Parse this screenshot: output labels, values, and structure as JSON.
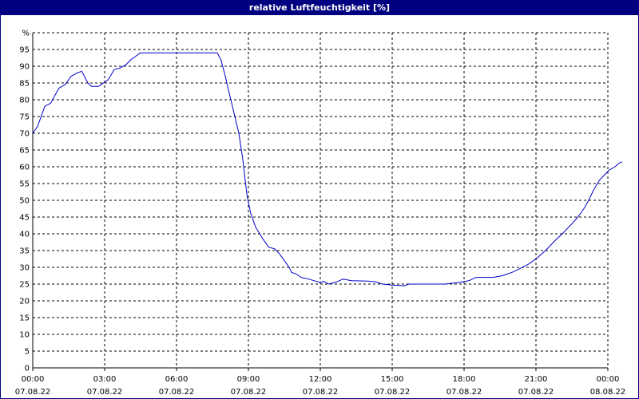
{
  "window": {
    "title": "relative Luftfeuchtigkeit [%]"
  },
  "chart_data": {
    "type": "line",
    "title": "relative Luftfeuchtigkeit [%]",
    "ylabel": "%",
    "ylim": [
      0,
      100
    ],
    "yticks": [
      0,
      5,
      10,
      15,
      20,
      25,
      30,
      35,
      40,
      45,
      50,
      55,
      60,
      65,
      70,
      75,
      80,
      85,
      90,
      95
    ],
    "xlim": [
      0,
      24
    ],
    "xticks": [
      {
        "x": 0,
        "time": "00:00",
        "date": "07.08.22"
      },
      {
        "x": 3,
        "time": "03:00",
        "date": "07.08.22"
      },
      {
        "x": 6,
        "time": "06:00",
        "date": "07.08.22"
      },
      {
        "x": 9,
        "time": "09:00",
        "date": "07.08.22"
      },
      {
        "x": 12,
        "time": "12:00",
        "date": "07.08.22"
      },
      {
        "x": 15,
        "time": "15:00",
        "date": "07.08.22"
      },
      {
        "x": 18,
        "time": "18:00",
        "date": "07.08.22"
      },
      {
        "x": 21,
        "time": "21:00",
        "date": "07.08.22"
      },
      {
        "x": 24,
        "time": "00:00",
        "date": "08.08.22"
      }
    ],
    "grid": true,
    "line_color": "#0000cc",
    "series": [
      {
        "points": [
          [
            0,
            70
          ],
          [
            0.2,
            72
          ],
          [
            0.4,
            76
          ],
          [
            0.5,
            78
          ],
          [
            0.75,
            79
          ],
          [
            0.9,
            81
          ],
          [
            1.1,
            83.5
          ],
          [
            1.35,
            84.5
          ],
          [
            1.6,
            87
          ],
          [
            1.85,
            88
          ],
          [
            2.05,
            88.5
          ],
          [
            2.3,
            85
          ],
          [
            2.45,
            84
          ],
          [
            2.75,
            84
          ],
          [
            2.95,
            85
          ],
          [
            3.15,
            86
          ],
          [
            3.4,
            89
          ],
          [
            3.65,
            89.5
          ],
          [
            3.9,
            90.5
          ],
          [
            4.1,
            92
          ],
          [
            4.3,
            93
          ],
          [
            4.5,
            94
          ],
          [
            5.5,
            94
          ],
          [
            6.5,
            94
          ],
          [
            7.2,
            94
          ],
          [
            7.7,
            94
          ],
          [
            7.85,
            92
          ],
          [
            8.0,
            88
          ],
          [
            8.2,
            82
          ],
          [
            8.4,
            76
          ],
          [
            8.6,
            70
          ],
          [
            8.75,
            63
          ],
          [
            8.85,
            57
          ],
          [
            8.95,
            51
          ],
          [
            9.1,
            46
          ],
          [
            9.3,
            42
          ],
          [
            9.6,
            38.5
          ],
          [
            9.85,
            36
          ],
          [
            10.1,
            35.5
          ],
          [
            10.3,
            34
          ],
          [
            10.5,
            32
          ],
          [
            10.7,
            30
          ],
          [
            10.8,
            28.5
          ],
          [
            11.0,
            28
          ],
          [
            11.2,
            27
          ],
          [
            11.5,
            26.5
          ],
          [
            11.75,
            26
          ],
          [
            12.0,
            25.5
          ],
          [
            12.15,
            25.8
          ],
          [
            12.35,
            25
          ],
          [
            12.7,
            25.7
          ],
          [
            12.95,
            26.5
          ],
          [
            13.3,
            26
          ],
          [
            14.0,
            25.9
          ],
          [
            14.3,
            25.7
          ],
          [
            14.6,
            25
          ],
          [
            15.0,
            24.7
          ],
          [
            15.5,
            24.5
          ],
          [
            15.7,
            25
          ],
          [
            16.5,
            25
          ],
          [
            17.2,
            25
          ],
          [
            17.8,
            25.5
          ],
          [
            18.2,
            26
          ],
          [
            18.5,
            27
          ],
          [
            19.2,
            27
          ],
          [
            19.6,
            27.5
          ],
          [
            20.0,
            28.5
          ],
          [
            20.3,
            29.5
          ],
          [
            20.7,
            31
          ],
          [
            21.0,
            32.5
          ],
          [
            21.4,
            35
          ],
          [
            21.8,
            38
          ],
          [
            22.1,
            40
          ],
          [
            22.3,
            41.5
          ],
          [
            22.5,
            43
          ],
          [
            22.75,
            45
          ],
          [
            23.0,
            47.5
          ],
          [
            23.2,
            50
          ],
          [
            23.4,
            53
          ],
          [
            23.65,
            56
          ],
          [
            23.85,
            57.5
          ],
          [
            24.05,
            59
          ],
          [
            24.3,
            60
          ],
          [
            24.45,
            61
          ],
          [
            24.6,
            61.5
          ]
        ]
      }
    ]
  }
}
